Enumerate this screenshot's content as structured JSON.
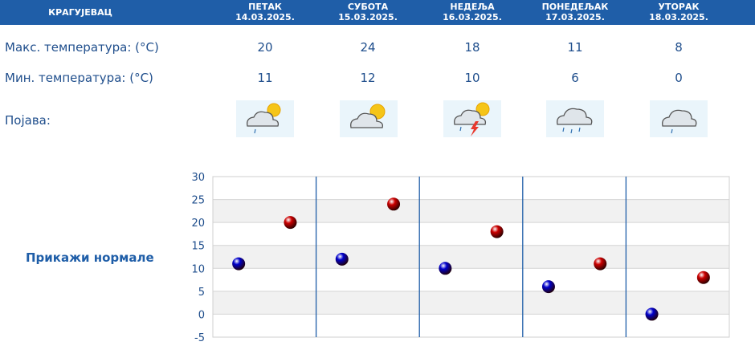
{
  "header": {
    "city": "КРАГУЈЕВАЦ",
    "days": [
      {
        "name": "ПЕТАК",
        "date": "14.03.2025."
      },
      {
        "name": "СУБОТА",
        "date": "15.03.2025."
      },
      {
        "name": "НЕДЕЉА",
        "date": "16.03.2025."
      },
      {
        "name": "ПОНЕДЕЉАК",
        "date": "17.03.2025."
      },
      {
        "name": "УТОРАК",
        "date": "18.03.2025."
      }
    ]
  },
  "rows": {
    "max_label": "Макс. температура: (°C)",
    "min_label": "Мин. температура: (°C)",
    "phen_label": "Појава:",
    "max": [
      "20",
      "24",
      "18",
      "11",
      "8"
    ],
    "min": [
      "11",
      "12",
      "10",
      "6",
      "0"
    ],
    "icons": [
      "partly-cloudy-light-rain-icon",
      "partly-cloudy-icon",
      "partly-cloudy-thunderstorm-icon",
      "cloud-rain-icon",
      "cloud-light-rain-icon"
    ]
  },
  "normals_link": "Прикажи нормале",
  "colors": {
    "header_bg": "#1f5ea8",
    "text": "#1f4e8c",
    "max_marker": "#cc0000",
    "min_marker": "#0000cc",
    "divider": "#1f5ea8"
  },
  "chart_data": {
    "type": "scatter",
    "categories": [
      "14.03.2025.",
      "15.03.2025.",
      "16.03.2025.",
      "17.03.2025.",
      "18.03.2025."
    ],
    "series": [
      {
        "values": [
          20,
          24,
          18,
          11,
          8
        ],
        "color": "#cc0000"
      },
      {
        "values": [
          11,
          12,
          10,
          6,
          0
        ],
        "color": "#0000cc"
      }
    ],
    "ylim": [
      -5,
      30
    ],
    "yticks": [
      30,
      25,
      20,
      15,
      10,
      5,
      0,
      -5
    ],
    "grid": true
  }
}
